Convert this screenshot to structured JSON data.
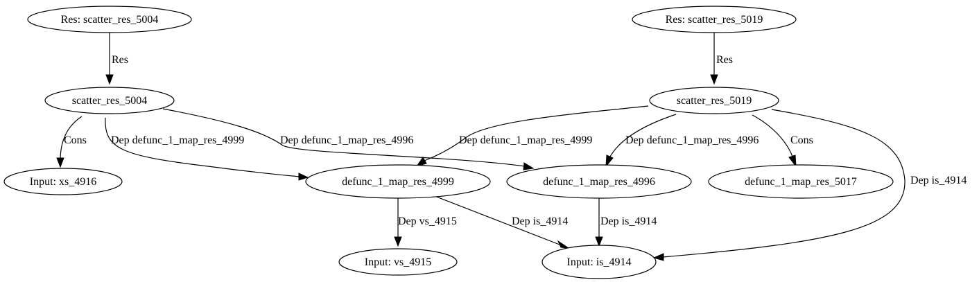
{
  "graph": {
    "nodes": {
      "res_5004": "Res: scatter_res_5004",
      "res_5019": "Res: scatter_res_5019",
      "scatter_5004": "scatter_res_5004",
      "scatter_5019": "scatter_res_5019",
      "input_xs": "Input: xs_4916",
      "defunc_4999": "defunc_1_map_res_4999",
      "defunc_4996": "defunc_1_map_res_4996",
      "defunc_5017": "defunc_1_map_res_5017",
      "input_vs": "Input: vs_4915",
      "input_is": "Input: is_4914"
    },
    "edges": {
      "res_5004_to_scatter": "Res",
      "res_5019_to_scatter": "Res",
      "scatter5004_to_xs": "Cons",
      "scatter5004_to_4999": "Dep defunc_1_map_res_4999",
      "scatter5004_to_4996": "Dep defunc_1_map_res_4996",
      "scatter5019_to_4999": "Dep defunc_1_map_res_4999",
      "scatter5019_to_4996": "Dep defunc_1_map_res_4996",
      "scatter5019_to_5017": "Cons",
      "scatter5019_to_is": "Dep is_4914",
      "d4999_to_vs": "Dep vs_4915",
      "d4999_to_is": "Dep is_4914",
      "d4996_to_is": "Dep is_4914"
    }
  }
}
